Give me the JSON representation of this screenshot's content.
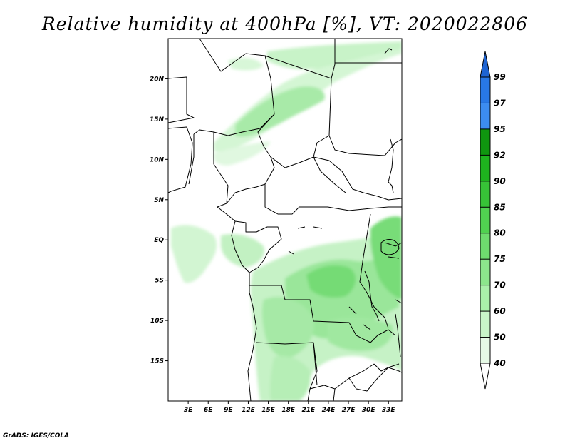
{
  "title": "Relative humidity at 400hPa [%], VT: 2020022806",
  "credit": "GrADS: IGES/COLA",
  "map": {
    "lon_range": [
      0,
      35
    ],
    "lat_range": [
      -20,
      25
    ],
    "lon_ticks": [
      {
        "value": 3,
        "label": "3E"
      },
      {
        "value": 6,
        "label": "6E"
      },
      {
        "value": 9,
        "label": "9E"
      },
      {
        "value": 12,
        "label": "12E"
      },
      {
        "value": 15,
        "label": "15E"
      },
      {
        "value": 18,
        "label": "18E"
      },
      {
        "value": 21,
        "label": "21E"
      },
      {
        "value": 24,
        "label": "24E"
      },
      {
        "value": 27,
        "label": "27E"
      },
      {
        "value": 30,
        "label": "30E"
      },
      {
        "value": 33,
        "label": "33E"
      }
    ],
    "lat_ticks": [
      {
        "value": 20,
        "label": "20N"
      },
      {
        "value": 15,
        "label": "15N"
      },
      {
        "value": 10,
        "label": "10N"
      },
      {
        "value": 5,
        "label": "5N"
      },
      {
        "value": 0,
        "label": "EQ"
      },
      {
        "value": -5,
        "label": "5S"
      },
      {
        "value": -10,
        "label": "10S"
      },
      {
        "value": -15,
        "label": "15S"
      }
    ]
  },
  "colorbar": {
    "labels": [
      "40",
      "50",
      "60",
      "70",
      "75",
      "80",
      "85",
      "90",
      "92",
      "95",
      "97",
      "99"
    ],
    "colors": [
      "#ffffff",
      "#e6fae6",
      "#c8f5c8",
      "#aaf0aa",
      "#8ce68c",
      "#6edc6e",
      "#50d250",
      "#37c337",
      "#1eb41e",
      "#0f960f",
      "#3c8cf0",
      "#2878e6",
      "#1e64d2"
    ]
  },
  "colors": {
    "light_green": "#ccf5cc",
    "mid_green": "#9ae69a",
    "deep_green": "#6ed96e"
  }
}
